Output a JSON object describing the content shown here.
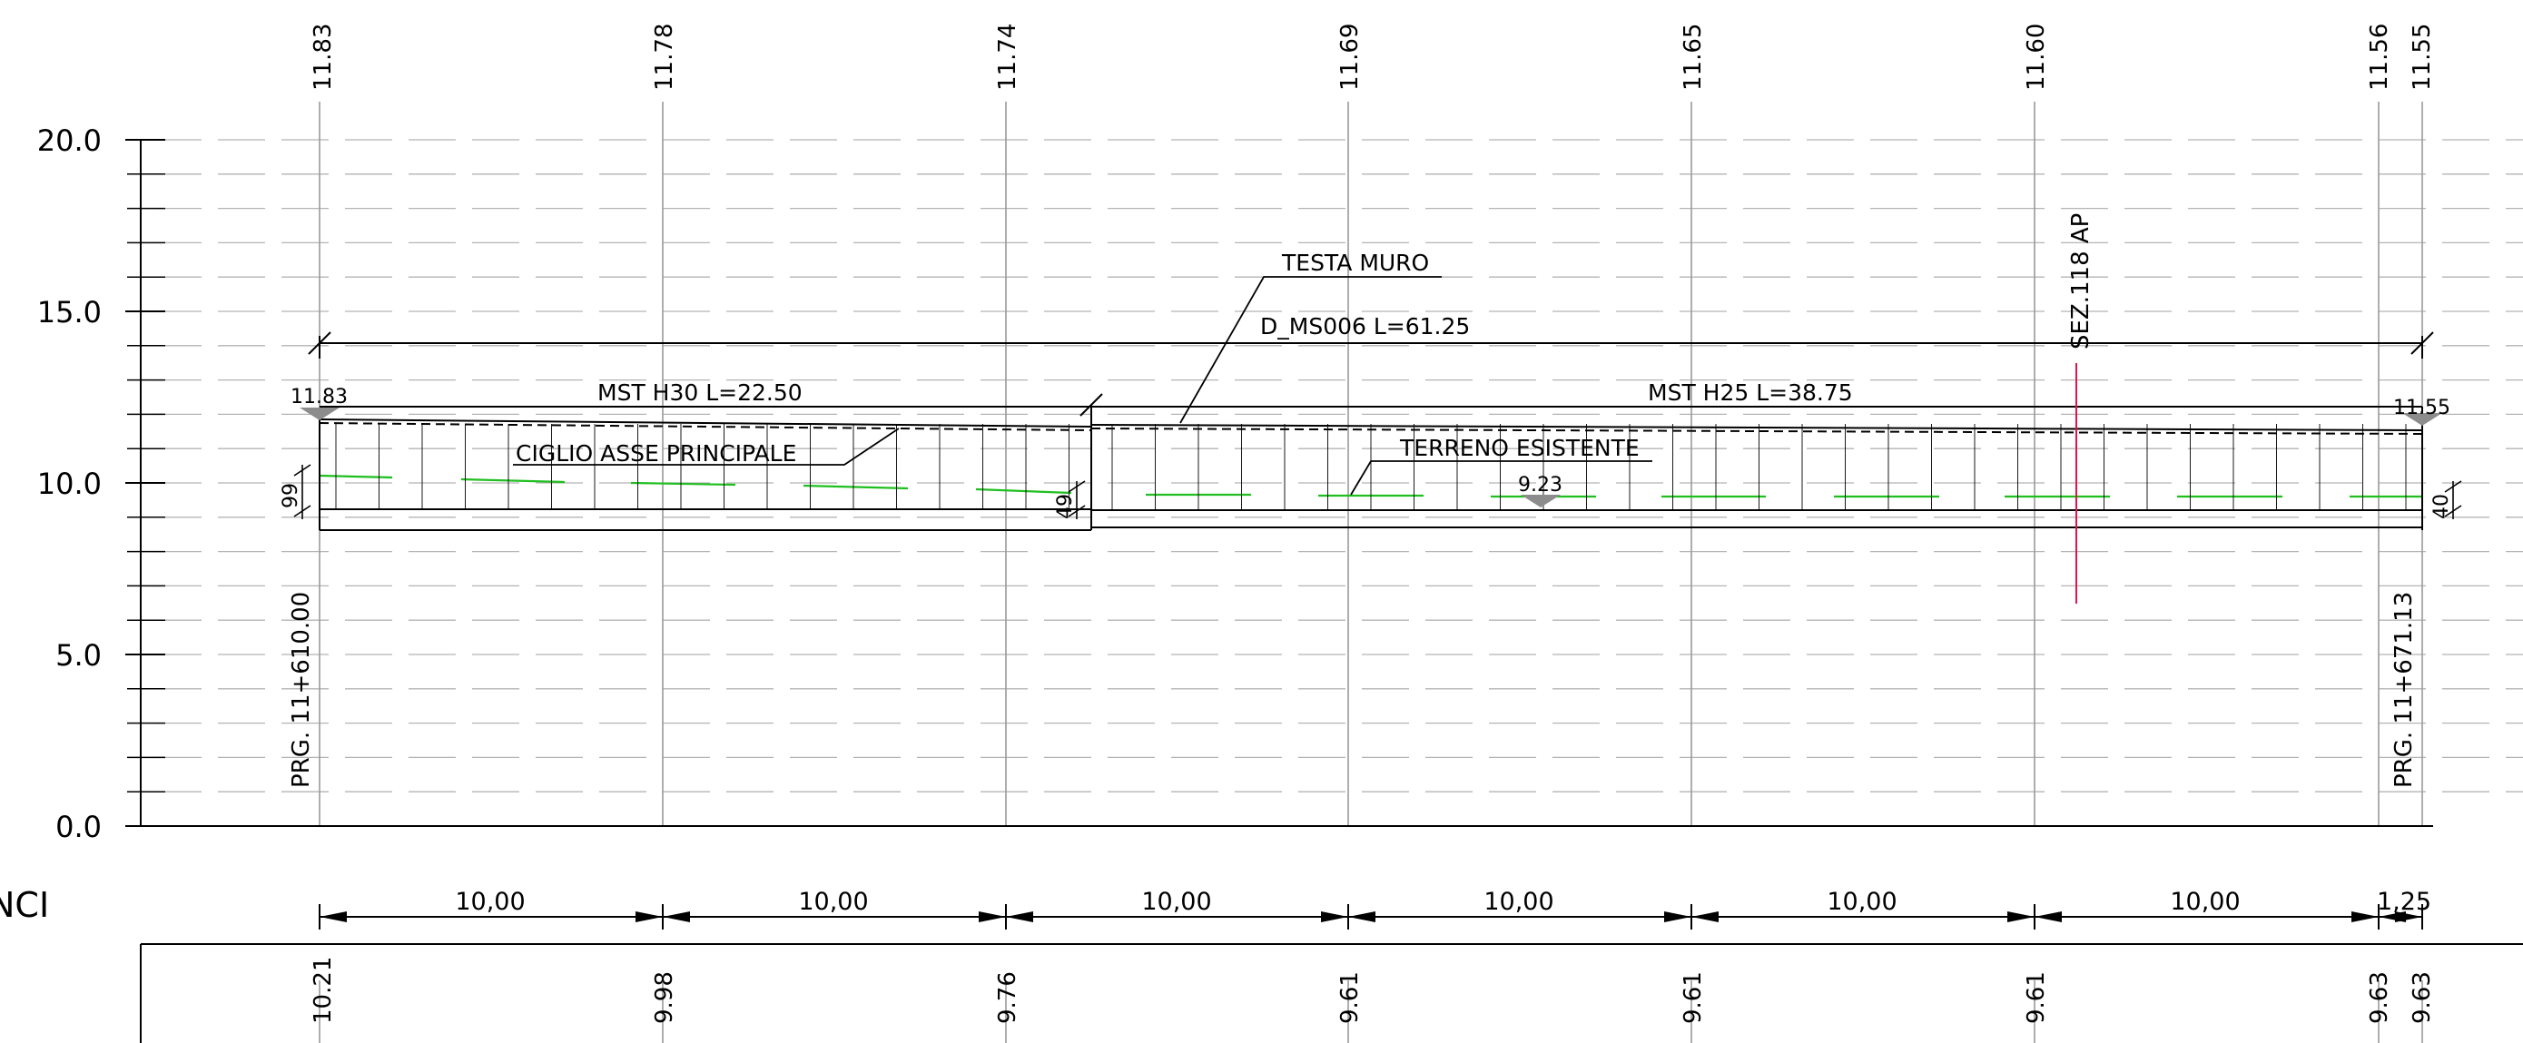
{
  "top_elevations": [
    "11.83",
    "11.78",
    "11.74",
    "11.69",
    "11.65",
    "11.60",
    "11.56",
    "11.55"
  ],
  "bottom_elevations": [
    "10.21",
    "9.98",
    "9.76",
    "9.61",
    "9.61",
    "9.61",
    "9.63",
    "9.63"
  ],
  "y_axis": {
    "labels": [
      "20.0",
      "15.0",
      "10.0",
      "5.0",
      "0.0"
    ],
    "values": [
      20,
      15,
      10,
      5,
      0
    ]
  },
  "labels": {
    "wall_d": "D_MS006  L=61.25",
    "mst_h30": "MST  H30  L=22.50",
    "mst_h25": "MST  H25  L=38.75",
    "testa_muro": "TESTA  MURO",
    "ciglio": "CIGLIO  ASSE  PRINCIPALE",
    "terreno": "TERRENO  ESISTENTE",
    "sez": "SEZ.118  AP",
    "elev_left": "11.83",
    "elev_right": "11.55",
    "elev_ground": "9.23",
    "dim_left": "99",
    "dim_mid": "49",
    "dim_right": "40",
    "prg_left": "PRG.  11+610.00",
    "prg_right": "PRG.  11+671.13",
    "partial_label": "NCI"
  },
  "distances": [
    "10,00",
    "10,00",
    "10,00",
    "10,00",
    "10,00",
    "10,00",
    "1,25"
  ],
  "colors": {
    "line": "#000000",
    "grid_dash": "#b4b4b4",
    "vertical_grid": "#9a9a9a",
    "ground_green": "#1fbf1f",
    "section_red": "#e0144c",
    "marker_gray": "#8c8c8c"
  }
}
